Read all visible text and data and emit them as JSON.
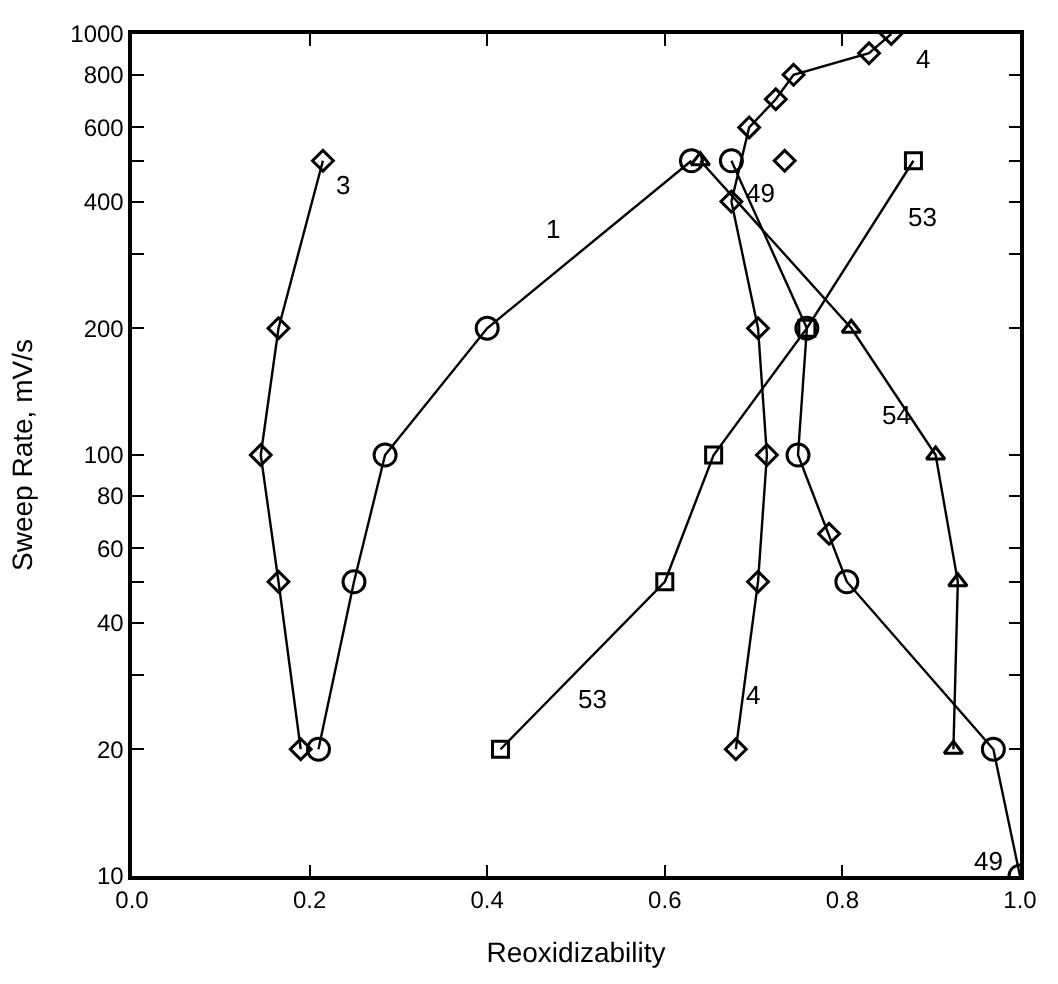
{
  "chart_data": {
    "type": "line",
    "xlabel": "Reoxidizability",
    "ylabel": "Sweep Rate, mV/s",
    "log": "y",
    "xlim": [
      0,
      1
    ],
    "xticks": [
      {
        "value": 0,
        "label": "0.0"
      },
      {
        "value": 0.2,
        "label": "0.2"
      },
      {
        "value": 0.4,
        "label": "0.4"
      },
      {
        "value": 0.6,
        "label": "0.6"
      },
      {
        "value": 0.8,
        "label": "0.8"
      },
      {
        "value": 1,
        "label": "1.0"
      }
    ],
    "ylim": [
      10,
      1000
    ],
    "yticks": [
      10,
      20,
      {
        "value": 30,
        "label": null
      },
      40,
      {
        "value": 50,
        "label": null
      },
      60,
      80,
      100,
      200,
      {
        "value": 300,
        "label": null
      },
      400,
      {
        "value": 500,
        "label": null
      },
      600,
      800,
      1000
    ],
    "series": [
      {
        "color": "#000000",
        "marker": "diamond",
        "x": [
          0.19,
          0.165,
          0.145,
          0.165,
          0.215
        ],
        "values": [
          20,
          50,
          100,
          200,
          500
        ]
      },
      {
        "color": "#000000",
        "marker": "circle",
        "x": [
          0.21,
          0.25,
          0.285,
          0.4,
          0.63
        ],
        "values": [
          20,
          50,
          100,
          200,
          500
        ]
      },
      {
        "color": "#000000",
        "marker": "triangle",
        "x": [
          0.64,
          0.81,
          0.905,
          0.93,
          0.925
        ],
        "values": [
          500,
          200,
          100,
          50,
          20
        ]
      },
      {
        "color": "#000000",
        "marker": "circle",
        "x": [
          0.675,
          0.76,
          0.75,
          0.805,
          0.97,
          1.0
        ],
        "values": [
          500,
          200,
          100,
          50,
          20,
          10
        ]
      },
      {
        "color": "#000000",
        "marker": "diamond",
        "x": [
          0.68,
          0.705,
          0.715,
          0.705,
          0.675,
          0.695,
          0.725,
          0.745,
          0.83,
          0.855
        ],
        "values": [
          20,
          50,
          100,
          200,
          400,
          600,
          700,
          800,
          900,
          1000
        ]
      },
      {
        "color": "#000000",
        "marker": "square",
        "x": [
          0.415,
          0.6,
          0.655,
          0.76,
          0.88
        ],
        "values": [
          20,
          50,
          100,
          200,
          500
        ]
      },
      {
        "type": "scatter",
        "color": "#000000",
        "marker": "diamond",
        "x": [
          0.735,
          0.785
        ],
        "values": [
          500,
          65
        ]
      }
    ],
    "annotations": [
      {
        "text": "3",
        "x": 0.215,
        "y": 500
      },
      {
        "text": "1",
        "x": 0.475,
        "y": 270
      },
      {
        "text": "49",
        "x": 0.675,
        "y": 500
      },
      {
        "text": "53",
        "x": 0.88,
        "y": 500
      },
      {
        "text": "4",
        "x": 0.855,
        "y": 1000
      },
      {
        "text": "54",
        "x": 0.86,
        "y": 125
      },
      {
        "text": "53",
        "x": 0.5,
        "y": 30
      },
      {
        "text": "4",
        "x": 0.7,
        "y": 27
      },
      {
        "text": "49",
        "x": 1.0,
        "y": 10
      }
    ]
  }
}
